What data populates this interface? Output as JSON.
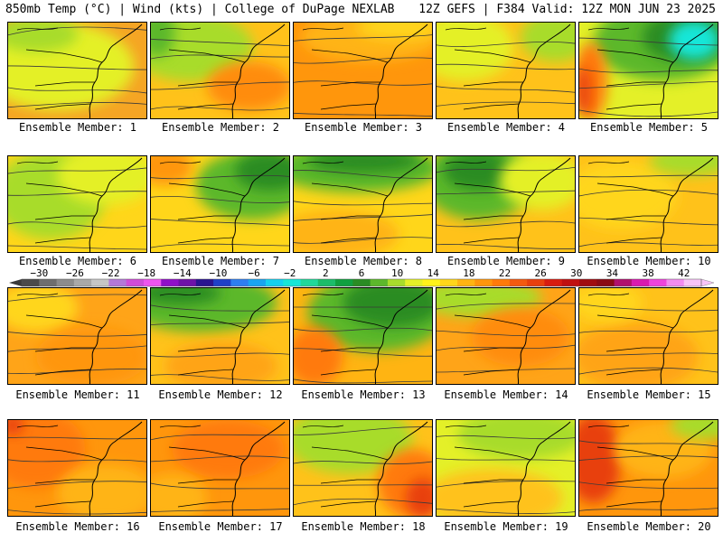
{
  "header": {
    "left": "850mb Temp (°C) | Wind (kts) | College of DuPage NEXLAB",
    "right": "12Z GEFS | F384 Valid: 12Z MON JUN 23 2025"
  },
  "chart_data": {
    "type": "heatmap",
    "title": "850mb Temp (°C) | Wind (kts)",
    "layout": "4 rows x 5 columns of map panels",
    "colorbar": {
      "ticks": [
        -30,
        -26,
        -22,
        -18,
        -14,
        -10,
        -6,
        -2,
        2,
        6,
        10,
        14,
        18,
        22,
        26,
        30,
        34,
        38,
        42
      ],
      "unit": "°C",
      "colors": [
        "#4a4a4a",
        "#6e6e6e",
        "#8c8c8c",
        "#a9a9a9",
        "#c6c6c6",
        "#b478d8",
        "#d04cd8",
        "#ee55ee",
        "#9010c8",
        "#6e12a8",
        "#2a1490",
        "#2040c8",
        "#2e7ef0",
        "#1aa4f0",
        "#16d0f0",
        "#18e6d8",
        "#20d89a",
        "#1cbc6a",
        "#10a040",
        "#2a8c24",
        "#5cb82c",
        "#a8dc2c",
        "#e4f028",
        "#fff21a",
        "#ffd61a",
        "#ffb412",
        "#ff960c",
        "#ff7a0a",
        "#f45a10",
        "#e8400e",
        "#d81c10",
        "#c01010",
        "#a00c10",
        "#8a0a14",
        "#b0106e",
        "#d81ab0",
        "#ee44dc",
        "#f28cf0",
        "#f8c4f8"
      ],
      "left_arrow_color": "#3a3a3a",
      "right_arrow_color": "#f8c4f8"
    },
    "members": [
      {
        "label": "Ensemble Member: 1",
        "base": "#f5a524",
        "blobs": [
          [
            "#e4f028",
            0.35,
            0.45,
            0.55,
            0.45
          ],
          [
            "#a8dc2c",
            0.2,
            0.12,
            0.3,
            0.18
          ]
        ]
      },
      {
        "label": "Ensemble Member: 2",
        "base": "#ffc21a",
        "blobs": [
          [
            "#a8dc2c",
            0.28,
            0.25,
            0.45,
            0.35
          ],
          [
            "#5cb82c",
            0.05,
            0.1,
            0.12,
            0.25
          ],
          [
            "#ff8c0c",
            0.7,
            0.65,
            0.3,
            0.25
          ]
        ]
      },
      {
        "label": "Ensemble Member: 3",
        "base": "#ff960c",
        "blobs": [
          [
            "#ffb412",
            0.55,
            0.15,
            0.5,
            0.25
          ],
          [
            "#ffd61a",
            0.75,
            0.05,
            0.3,
            0.12
          ]
        ]
      },
      {
        "label": "Ensemble Member: 4",
        "base": "#ffc21a",
        "blobs": [
          [
            "#e4f028",
            0.2,
            0.25,
            0.35,
            0.35
          ],
          [
            "#a8dc2c",
            0.85,
            0.15,
            0.25,
            0.25
          ]
        ]
      },
      {
        "label": "Ensemble Member: 5",
        "base": "#e4f028",
        "blobs": [
          [
            "#5cb82c",
            0.6,
            0.2,
            0.5,
            0.4
          ],
          [
            "#2a8c24",
            0.75,
            0.15,
            0.3,
            0.25
          ],
          [
            "#18e6d8",
            0.82,
            0.18,
            0.18,
            0.2
          ],
          [
            "#ff7a0a",
            0.08,
            0.6,
            0.12,
            0.4
          ],
          [
            "#e8400e",
            0.03,
            0.7,
            0.05,
            0.25
          ]
        ]
      },
      {
        "label": "Ensemble Member: 6",
        "base": "#ffd61a",
        "blobs": [
          [
            "#a8dc2c",
            0.3,
            0.4,
            0.4,
            0.45
          ],
          [
            "#e4f028",
            0.7,
            0.2,
            0.35,
            0.3
          ]
        ]
      },
      {
        "label": "Ensemble Member: 7",
        "base": "#ffd61a",
        "blobs": [
          [
            "#5cb82c",
            0.72,
            0.3,
            0.4,
            0.35
          ],
          [
            "#2a8c24",
            0.85,
            0.15,
            0.25,
            0.2
          ],
          [
            "#ff960c",
            0.1,
            0.1,
            0.2,
            0.2
          ]
        ]
      },
      {
        "label": "Ensemble Member: 8",
        "base": "#ffd61a",
        "blobs": [
          [
            "#5cb82c",
            0.45,
            0.12,
            0.6,
            0.25
          ],
          [
            "#2a8c24",
            0.5,
            0.05,
            0.4,
            0.12
          ],
          [
            "#ffb412",
            0.3,
            0.8,
            0.45,
            0.25
          ]
        ]
      },
      {
        "label": "Ensemble Member: 9",
        "base": "#ffc21a",
        "blobs": [
          [
            "#5cb82c",
            0.3,
            0.25,
            0.4,
            0.4
          ],
          [
            "#2a8c24",
            0.3,
            0.15,
            0.25,
            0.2
          ],
          [
            "#e4f028",
            0.75,
            0.25,
            0.3,
            0.3
          ]
        ]
      },
      {
        "label": "Ensemble Member: 10",
        "base": "#ffc21a",
        "blobs": [
          [
            "#ffd61a",
            0.3,
            0.4,
            0.4,
            0.35
          ],
          [
            "#a8dc2c",
            0.8,
            0.05,
            0.3,
            0.15
          ]
        ]
      },
      {
        "label": "Ensemble Member: 11",
        "base": "#ffa418",
        "blobs": [
          [
            "#ffd61a",
            0.2,
            0.2,
            0.3,
            0.25
          ],
          [
            "#ff960c",
            0.6,
            0.7,
            0.4,
            0.3
          ]
        ]
      },
      {
        "label": "Ensemble Member: 12",
        "base": "#ffc21a",
        "blobs": [
          [
            "#5cb82c",
            0.35,
            0.15,
            0.55,
            0.3
          ],
          [
            "#2a8c24",
            0.2,
            0.05,
            0.3,
            0.12
          ],
          [
            "#ffa418",
            0.5,
            0.8,
            0.4,
            0.25
          ]
        ]
      },
      {
        "label": "Ensemble Member: 13",
        "base": "#ffb412",
        "blobs": [
          [
            "#5cb82c",
            0.6,
            0.25,
            0.5,
            0.4
          ],
          [
            "#2a8c24",
            0.7,
            0.15,
            0.35,
            0.25
          ],
          [
            "#ff7a0a",
            0.15,
            0.7,
            0.2,
            0.3
          ]
        ]
      },
      {
        "label": "Ensemble Member: 14",
        "base": "#ffa418",
        "blobs": [
          [
            "#a8dc2c",
            0.3,
            0.1,
            0.45,
            0.2
          ],
          [
            "#ff8c0c",
            0.6,
            0.5,
            0.35,
            0.3
          ]
        ]
      },
      {
        "label": "Ensemble Member: 15",
        "base": "#ffc21a",
        "blobs": [
          [
            "#ffa418",
            0.4,
            0.7,
            0.45,
            0.35
          ],
          [
            "#ffd61a",
            0.2,
            0.15,
            0.25,
            0.2
          ]
        ]
      },
      {
        "label": "Ensemble Member: 16",
        "base": "#ff960c",
        "blobs": [
          [
            "#ff7a0a",
            0.2,
            0.3,
            0.35,
            0.4
          ],
          [
            "#e8400e",
            0.03,
            0.05,
            0.08,
            0.1
          ],
          [
            "#ffb412",
            0.7,
            0.75,
            0.35,
            0.3
          ]
        ]
      },
      {
        "label": "Ensemble Member: 17",
        "base": "#ff960c",
        "blobs": [
          [
            "#ff7a0a",
            0.55,
            0.3,
            0.4,
            0.3
          ],
          [
            "#ffb412",
            0.15,
            0.8,
            0.25,
            0.25
          ]
        ]
      },
      {
        "label": "Ensemble Member: 18",
        "base": "#ffc21a",
        "blobs": [
          [
            "#a8dc2c",
            0.4,
            0.2,
            0.45,
            0.35
          ],
          [
            "#ff7a0a",
            0.85,
            0.65,
            0.25,
            0.35
          ],
          [
            "#e8400e",
            0.92,
            0.8,
            0.12,
            0.2
          ]
        ]
      },
      {
        "label": "Ensemble Member: 19",
        "base": "#e4f028",
        "blobs": [
          [
            "#a8dc2c",
            0.6,
            0.15,
            0.45,
            0.25
          ],
          [
            "#ffc21a",
            0.4,
            0.8,
            0.5,
            0.3
          ]
        ]
      },
      {
        "label": "Ensemble Member: 20",
        "base": "#ff960c",
        "blobs": [
          [
            "#e8400e",
            0.1,
            0.4,
            0.2,
            0.45
          ],
          [
            "#ffb412",
            0.6,
            0.3,
            0.35,
            0.3
          ],
          [
            "#a8dc2c",
            0.9,
            0.05,
            0.25,
            0.15
          ]
        ]
      }
    ]
  }
}
